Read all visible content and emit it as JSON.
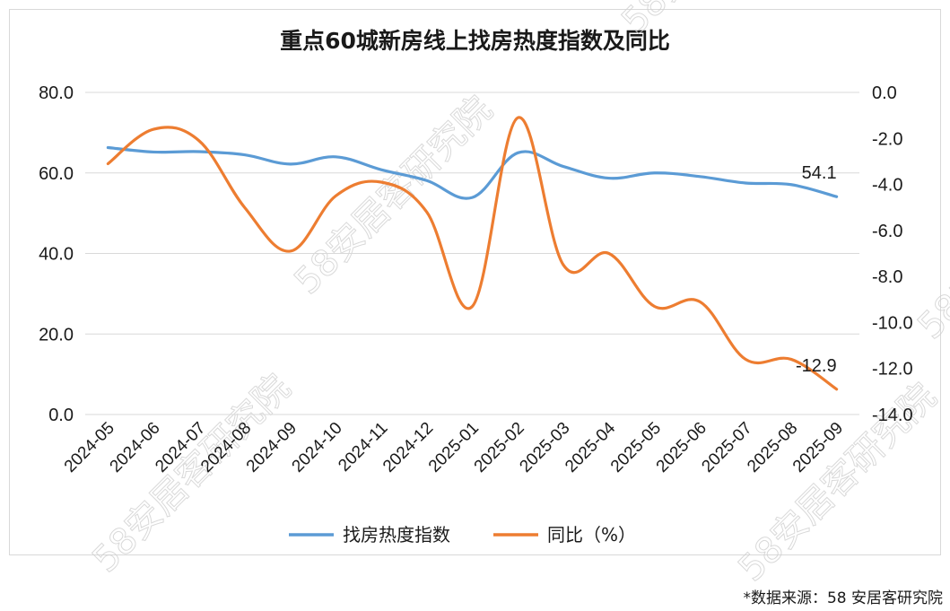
{
  "chart_data": {
    "type": "line",
    "title": "重点60城新房线上找房热度指数及同比",
    "categories": [
      "2024-05",
      "2024-06",
      "2024-07",
      "2024-08",
      "2024-09",
      "2024-10",
      "2024-11",
      "2024-12",
      "2025-01",
      "2025-02",
      "2025-03",
      "2025-04",
      "2025-05",
      "2025-06",
      "2025-07",
      "2025-08",
      "2025-09"
    ],
    "y_left": {
      "range": [
        0,
        80
      ],
      "ticks": [
        "0.0",
        "20.0",
        "40.0",
        "60.0",
        "80.0"
      ]
    },
    "y_right": {
      "range": [
        -14,
        0
      ],
      "ticks": [
        "-14.0",
        "-12.0",
        "-10.0",
        "-8.0",
        "-6.0",
        "-4.0",
        "-2.0",
        "0.0"
      ]
    },
    "grid": true,
    "legend_position": "bottom",
    "series": [
      {
        "name": "找房热度指数",
        "axis": "left",
        "color": "#5b9bd5",
        "values": [
          66.3,
          65.2,
          65.3,
          64.5,
          62.2,
          64.0,
          60.8,
          58.1,
          53.9,
          65.0,
          61.6,
          58.7,
          60.0,
          59.1,
          57.5,
          57.1,
          54.1
        ]
      },
      {
        "name": "同比（%）",
        "axis": "right",
        "color": "#ed7d31",
        "values": [
          -3.1,
          -1.6,
          -2.1,
          -5.0,
          -6.9,
          -4.5,
          -3.9,
          -5.2,
          -9.3,
          -1.1,
          -7.5,
          -7.0,
          -9.3,
          -9.1,
          -11.6,
          -11.6,
          -12.9
        ]
      }
    ],
    "data_labels": [
      {
        "series": 0,
        "index": 16,
        "text": "54.1"
      },
      {
        "series": 1,
        "index": 16,
        "text": "-12.9"
      }
    ]
  },
  "source_note": "*数据来源：58 安居客研究院",
  "watermark": "58安居客研究院"
}
